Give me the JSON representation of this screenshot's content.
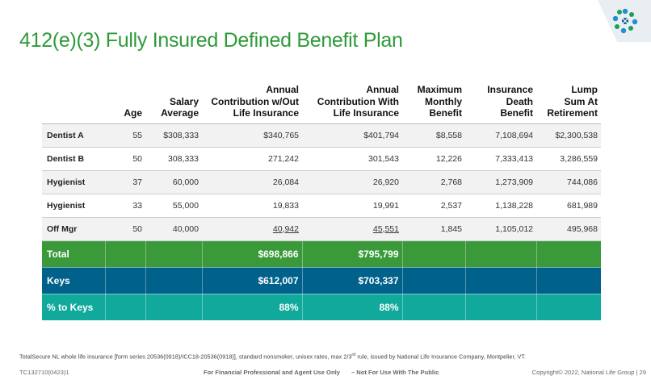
{
  "title": "412(e)(3) Fully Insured Defined Benefit Plan",
  "logo_icon": "national-life-logo-icon",
  "colors": {
    "title": "#2e9a3a",
    "total": "#3a9a3a",
    "keys": "#00618a",
    "pct": "#11a99b"
  },
  "table": {
    "headers": [
      {
        "l1": "",
        "l2": "",
        "l3": "Age"
      },
      {
        "l1": "",
        "l2": "Salary",
        "l3": "Average"
      },
      {
        "l1": "Annual",
        "l2": "Contribution w/Out",
        "l3": "Life Insurance"
      },
      {
        "l1": "Annual",
        "l2": "Contribution With",
        "l3": "Life Insurance"
      },
      {
        "l1": "Maximum",
        "l2": "Monthly",
        "l3": "Benefit"
      },
      {
        "l1": "Insurance",
        "l2": "Death",
        "l3": "Benefit"
      },
      {
        "l1": "Lump",
        "l2": "Sum At",
        "l3": "Retirement"
      }
    ],
    "rows": [
      [
        "Dentist A",
        "55",
        "$308,333",
        "$340,765",
        "$401,794",
        "$8,558",
        "7,108,694",
        "$2,300,538"
      ],
      [
        "Dentist B",
        "50",
        "308,333",
        "271,242",
        "301,543",
        "12,226",
        "7,333,413",
        "3,286,559"
      ],
      [
        "Hygienist",
        "37",
        "60,000",
        "26,084",
        "26,920",
        "2,768",
        "1,273,909",
        "744,086"
      ],
      [
        "Hygienist",
        "33",
        "55,000",
        "19,833",
        "19,991",
        "2,537",
        "1,138,228",
        "681,989"
      ],
      [
        "Off Mgr",
        "50",
        "40,000",
        "40,942",
        "45,551",
        "1,845",
        "1,105,012",
        "495,968"
      ]
    ],
    "total": {
      "label": "Total",
      "without": "$698,866",
      "with": "$795,799"
    },
    "keys": {
      "label": "Keys",
      "without": "$612,007",
      "with": "$703,337"
    },
    "pct": {
      "label": "% to Keys",
      "without": "88%",
      "with": "88%"
    }
  },
  "footnote": {
    "pre": "TotalSecure NL whole life insurance [form series 20536(0918)/ICC18-20536(0918)], standard nonsmoker, unisex rates, max 2/3",
    "sup": "rd",
    "post": "rule, issued by National Life Insurance Company, Montpelier, VT."
  },
  "footer": {
    "code": "TC132710(0423)1",
    "middle": "For Financial Professional and Agent Use Only",
    "middle2": "– Not For Use With The Public",
    "copyright": "Copyright© 2022, National Life Group | 29"
  }
}
